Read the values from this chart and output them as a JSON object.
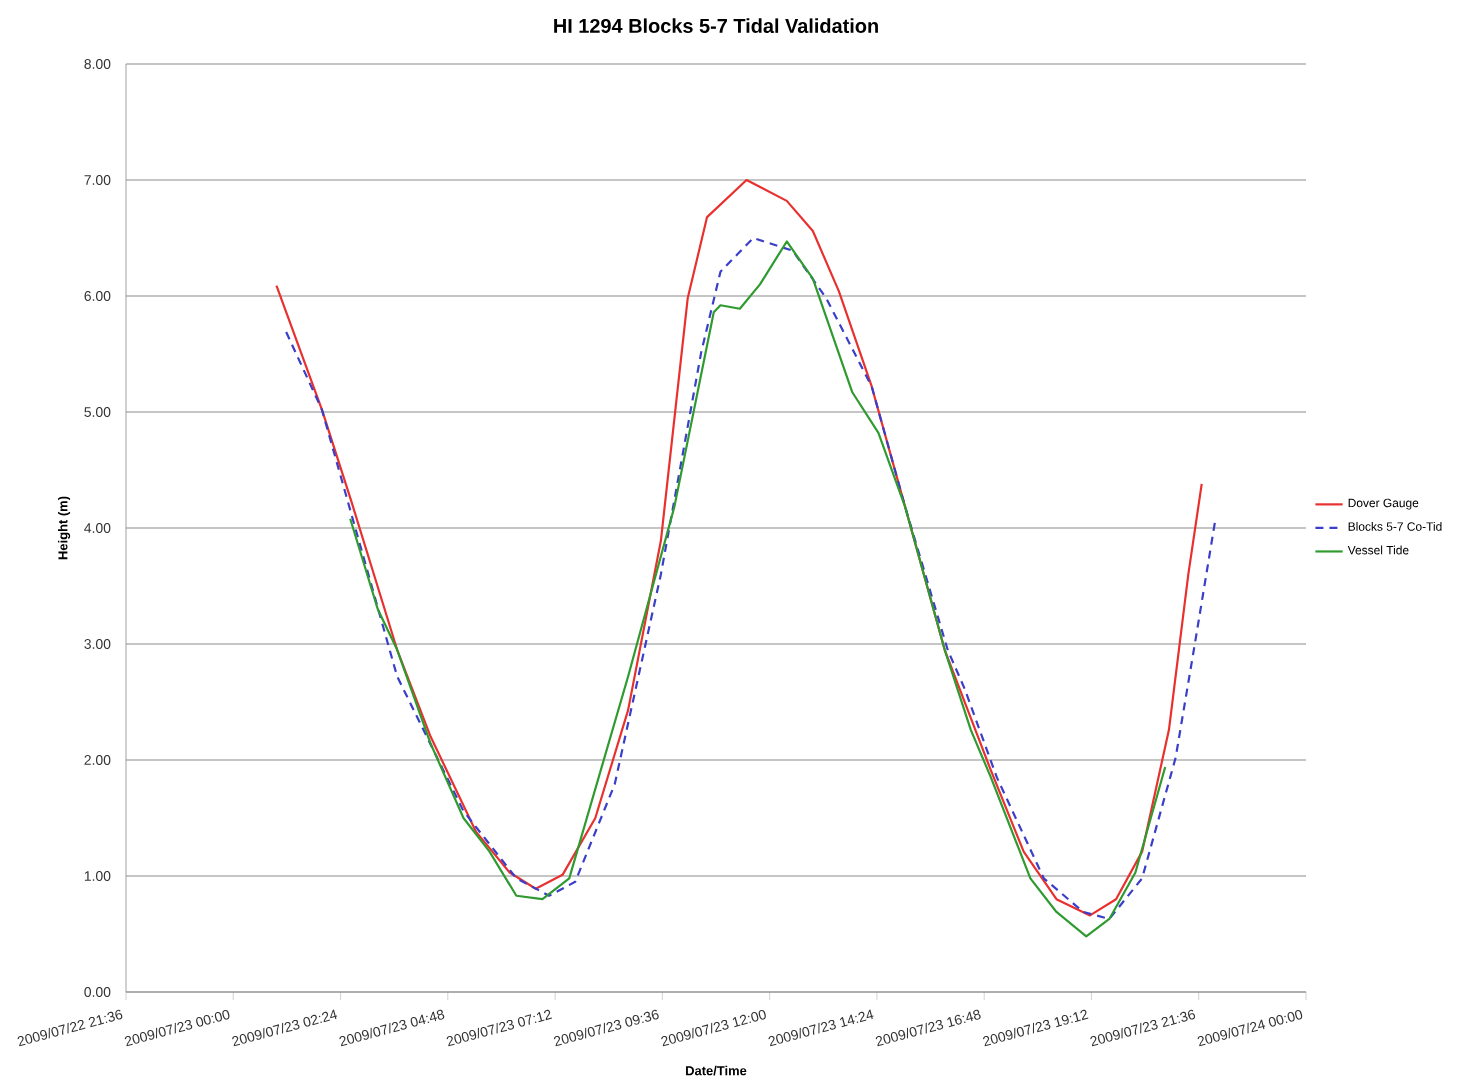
{
  "chart_data": {
    "type": "line",
    "title": "HI 1294 Blocks 5-7 Tidal Validation",
    "xlabel": "Date/Time",
    "ylabel": "Height (m)",
    "xlim": [
      "2009-07-22T21:36",
      "2009-07-24T00:00"
    ],
    "ylim": [
      0,
      8
    ],
    "xticks": [
      {
        "value": "2009-07-22T21:36",
        "label": "2009/07/22 21:36"
      },
      {
        "value": "2009-07-23T00:00",
        "label": "2009/07/23 00:00"
      },
      {
        "value": "2009-07-23T02:24",
        "label": "2009/07/23 02:24"
      },
      {
        "value": "2009-07-23T04:48",
        "label": "2009/07/23 04:48"
      },
      {
        "value": "2009-07-23T07:12",
        "label": "2009/07/23 07:12"
      },
      {
        "value": "2009-07-23T09:36",
        "label": "2009/07/23 09:36"
      },
      {
        "value": "2009-07-23T12:00",
        "label": "2009/07/23 12:00"
      },
      {
        "value": "2009-07-23T14:24",
        "label": "2009/07/23 14:24"
      },
      {
        "value": "2009-07-23T16:48",
        "label": "2009/07/23 16:48"
      },
      {
        "value": "2009-07-23T19:12",
        "label": "2009/07/23 19:12"
      },
      {
        "value": "2009-07-23T21:36",
        "label": "2009/07/23 21:36"
      },
      {
        "value": "2009-07-24T00:00",
        "label": "2009/07/24 00:00"
      }
    ],
    "yticks": [
      {
        "value": 0,
        "label": "0.00"
      },
      {
        "value": 1,
        "label": "1.00"
      },
      {
        "value": 2,
        "label": "2.00"
      },
      {
        "value": 3,
        "label": "3.00"
      },
      {
        "value": 4,
        "label": "4.00"
      },
      {
        "value": 5,
        "label": "5.00"
      },
      {
        "value": 6,
        "label": "6.00"
      },
      {
        "value": 7,
        "label": "7.00"
      },
      {
        "value": 8,
        "label": "8.00"
      }
    ],
    "grid": "y",
    "legend": "right",
    "marker": "none",
    "series": [
      {
        "name": "Dover Gauge",
        "color": "#e8312f",
        "line_style": "solid",
        "x": [
          "2009-07-23T00:58",
          "2009-07-23T01:59",
          "2009-07-23T02:38",
          "2009-07-23T03:40",
          "2009-07-23T04:25",
          "2009-07-23T05:26",
          "2009-07-23T06:11",
          "2009-07-23T06:46",
          "2009-07-23T07:22",
          "2009-07-23T08:06",
          "2009-07-23T08:50",
          "2009-07-23T09:34",
          "2009-07-23T10:10",
          "2009-07-23T10:36",
          "2009-07-23T11:29",
          "2009-07-23T12:23",
          "2009-07-23T12:58",
          "2009-07-23T13:33",
          "2009-07-23T14:17",
          "2009-07-23T15:02",
          "2009-07-23T15:55",
          "2009-07-23T16:57",
          "2009-07-23T17:41",
          "2009-07-23T18:25",
          "2009-07-23T19:10",
          "2009-07-23T19:45",
          "2009-07-23T20:20",
          "2009-07-23T20:56",
          "2009-07-23T21:22",
          "2009-07-23T21:40"
        ],
        "values": [
          6.09,
          5.02,
          4.24,
          2.95,
          2.2,
          1.38,
          1.03,
          0.89,
          1.01,
          1.5,
          2.43,
          3.89,
          5.98,
          6.68,
          7.0,
          6.82,
          6.56,
          6.04,
          5.22,
          4.18,
          2.95,
          1.91,
          1.21,
          0.8,
          0.66,
          0.8,
          1.21,
          2.26,
          3.6,
          4.38
        ]
      },
      {
        "name": "Blocks 5-7 Co-Tid",
        "color": "#3a3ec8",
        "line_style": "dashed",
        "x": [
          "2009-07-23T01:11",
          "2009-07-23T01:59",
          "2009-07-23T03:40",
          "2009-07-23T05:09",
          "2009-07-23T06:20",
          "2009-07-23T07:04",
          "2009-07-23T07:39",
          "2009-07-23T08:32",
          "2009-07-23T09:34",
          "2009-07-23T10:28",
          "2009-07-23T10:54",
          "2009-07-23T11:38",
          "2009-07-23T12:31",
          "2009-07-23T13:16",
          "2009-07-23T14:17",
          "2009-07-23T15:02",
          "2009-07-23T15:59",
          "2009-07-23T16:22",
          "2009-07-23T17:05",
          "2009-07-23T18:08",
          "2009-07-23T19:01",
          "2009-07-23T19:36",
          "2009-07-23T20:20",
          "2009-07-23T21:05",
          "2009-07-23T21:31",
          "2009-07-23T21:58"
        ],
        "values": [
          5.69,
          5.02,
          2.72,
          1.56,
          0.98,
          0.83,
          0.95,
          1.79,
          3.6,
          5.51,
          6.21,
          6.5,
          6.39,
          5.98,
          5.22,
          4.18,
          2.95,
          2.61,
          1.85,
          0.98,
          0.69,
          0.63,
          0.98,
          2.02,
          3.01,
          4.06
        ]
      },
      {
        "name": "Vessel Tide",
        "color": "#2f9a2f",
        "line_style": "solid",
        "x": [
          "2009-07-23T02:37",
          "2009-07-23T03:14",
          "2009-07-23T03:40",
          "2009-07-23T04:25",
          "2009-07-23T05:09",
          "2009-07-23T05:44",
          "2009-07-23T06:20",
          "2009-07-23T06:55",
          "2009-07-23T07:31",
          "2009-07-23T08:50",
          "2009-07-23T09:52",
          "2009-07-23T10:45",
          "2009-07-23T10:54",
          "2009-07-23T11:20",
          "2009-07-23T11:47",
          "2009-07-23T12:23",
          "2009-07-23T12:58",
          "2009-07-23T13:51",
          "2009-07-23T14:26",
          "2009-07-23T15:02",
          "2009-07-23T15:55",
          "2009-07-23T16:30",
          "2009-07-23T16:57",
          "2009-07-23T17:50",
          "2009-07-23T18:25",
          "2009-07-23T19:05",
          "2009-07-23T19:36",
          "2009-07-23T20:11",
          "2009-07-23T20:51"
        ],
        "values": [
          4.08,
          3.3,
          2.95,
          2.14,
          1.5,
          1.21,
          0.83,
          0.8,
          0.98,
          2.72,
          4.18,
          5.86,
          5.92,
          5.89,
          6.1,
          6.47,
          6.15,
          5.17,
          4.82,
          4.18,
          2.95,
          2.26,
          1.85,
          0.98,
          0.69,
          0.48,
          0.63,
          1.03,
          1.94
        ]
      }
    ]
  }
}
